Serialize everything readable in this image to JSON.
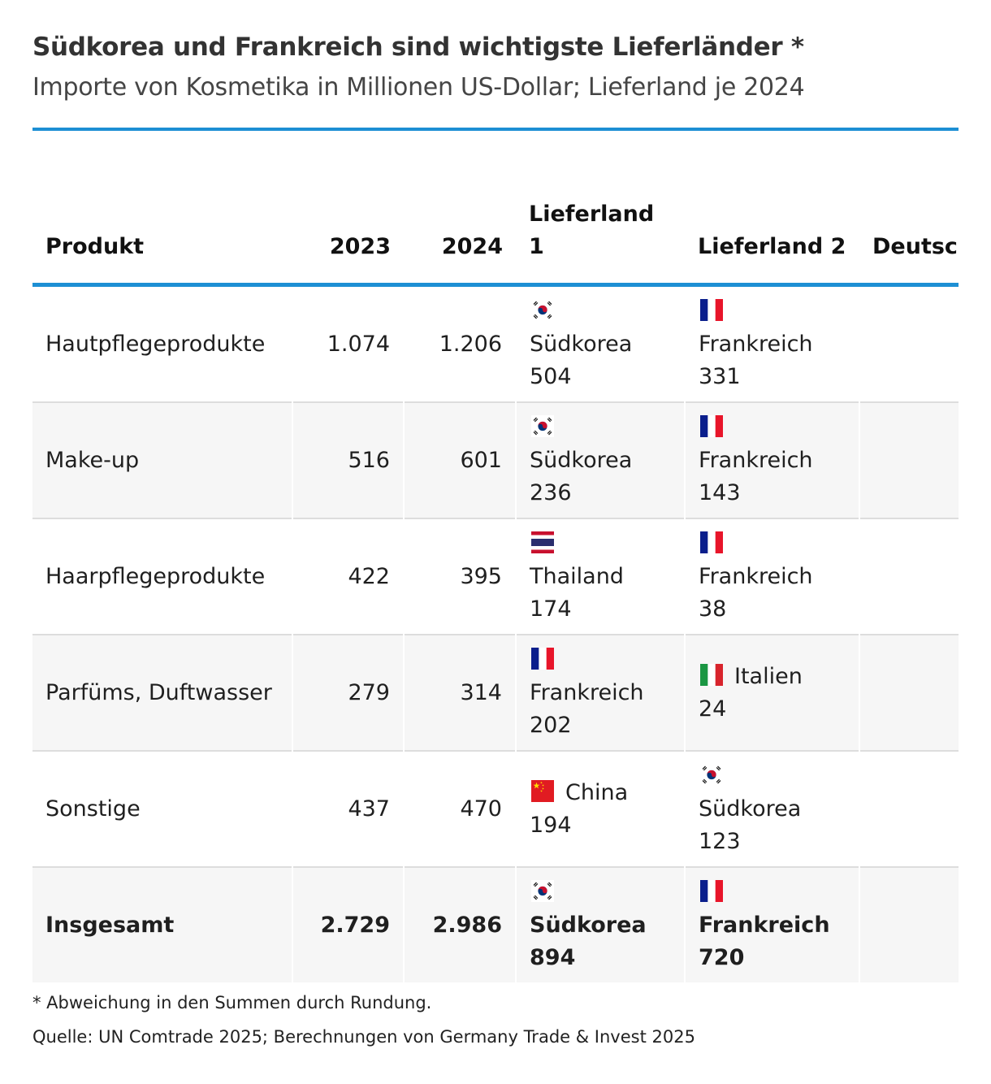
{
  "title": "Südkorea und Frankreich sind wichtigste Lieferländer *",
  "subtitle": "Importe von Kosmetika in Millionen US-Dollar; Lieferland je 2024",
  "chart_data": {
    "type": "table",
    "columns": [
      "Produkt",
      "2023",
      "2024",
      "Lieferland 1",
      "Lieferland 2",
      "Deutsc"
    ],
    "rows": [
      {
        "product": "Hautpflegeprodukte",
        "y2023": "1.074",
        "y2024": "1.206",
        "s1_country": "Südkorea",
        "s1_value": "504",
        "s1_flag": "south-korea",
        "s2_country": "Frankreich",
        "s2_value": "331",
        "s2_flag": "france"
      },
      {
        "product": "Make-up",
        "y2023": "516",
        "y2024": "601",
        "s1_country": "Südkorea",
        "s1_value": "236",
        "s1_flag": "south-korea",
        "s2_country": "Frankreich",
        "s2_value": "143",
        "s2_flag": "france"
      },
      {
        "product": "Haarpflegeprodukte",
        "y2023": "422",
        "y2024": "395",
        "s1_country": "Thailand",
        "s1_value": "174",
        "s1_flag": "thailand",
        "s2_country": "Frankreich",
        "s2_value": "38",
        "s2_flag": "france"
      },
      {
        "product": "Parfüms, Duftwasser",
        "y2023": "279",
        "y2024": "314",
        "s1_country": "Frankreich",
        "s1_value": "202",
        "s1_flag": "france",
        "s2_country": "Italien",
        "s2_value": "24",
        "s2_flag": "italy"
      },
      {
        "product": "Sonstige",
        "y2023": "437",
        "y2024": "470",
        "s1_country": "China",
        "s1_value": "194",
        "s1_flag": "china",
        "s2_country": "Südkorea",
        "s2_value": "123",
        "s2_flag": "south-korea"
      }
    ],
    "total": {
      "product": "Insgesamt",
      "y2023": "2.729",
      "y2024": "2.986",
      "s1_country": "Südkorea",
      "s1_value": "894",
      "s1_flag": "south-korea",
      "s2_country": "Frankreich",
      "s2_value": "720",
      "s2_flag": "france"
    }
  },
  "footnote": "* Abweichung in den Summen durch Rundung.",
  "source": "Quelle: UN Comtrade 2025; Berechnungen von Germany Trade & Invest 2025",
  "colors": {
    "accent": "#1d8fd4",
    "row_alt": "#f6f6f6",
    "france_blue": "#0a1e8c",
    "france_red": "#e8152a",
    "italy_green": "#1a9642",
    "italy_red": "#d8242c",
    "china_red": "#e11b22",
    "china_star": "#ffde00",
    "thailand_red": "#c8102e",
    "thailand_blue": "#2a2e6e",
    "korea_red": "#c8102e",
    "korea_blue": "#003478"
  }
}
